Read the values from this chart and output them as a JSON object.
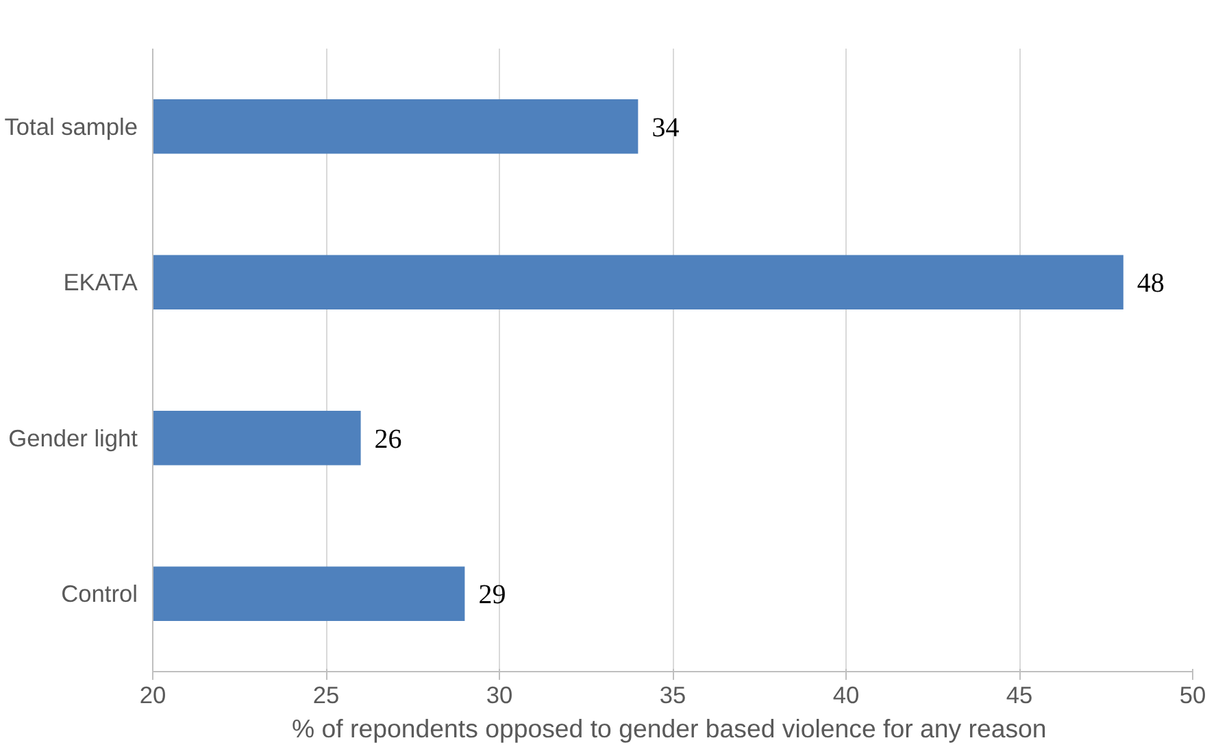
{
  "chart_data": {
    "type": "bar",
    "orientation": "horizontal",
    "categories": [
      "Total sample",
      "EKATA",
      "Gender light",
      "Control"
    ],
    "values": [
      34,
      48,
      26,
      29
    ],
    "color": "#4f81bd",
    "xlim": [
      20,
      50
    ],
    "xticks": [
      20,
      25,
      30,
      35,
      40,
      45,
      50
    ],
    "xlabel": "% of repondents  opposed to gender based violence for any reason",
    "grid": "x",
    "data_labels": true
  }
}
